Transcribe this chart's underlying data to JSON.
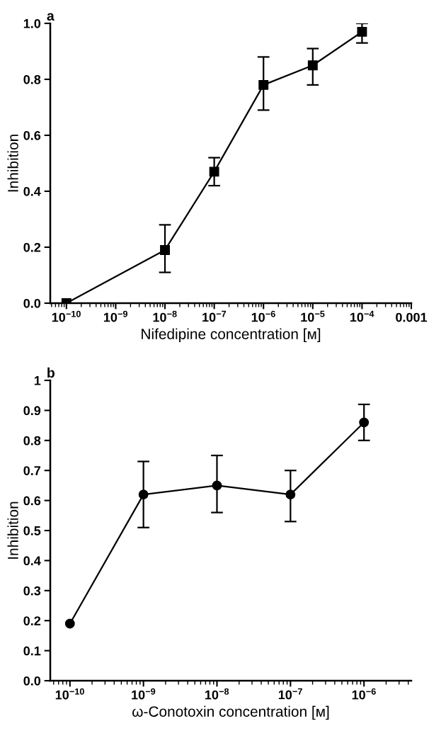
{
  "chart_data": [
    {
      "type": "line",
      "title": "a",
      "xlabel": "Nifedipine concentration [м]",
      "ylabel": "Inhibition",
      "log": "x",
      "marker": "square",
      "line_style": "solid",
      "grid": false,
      "x": [
        1e-10,
        1e-08,
        1e-07,
        1e-06,
        1e-05,
        0.0001
      ],
      "series": [
        {
          "color": "#000000",
          "values": [
            0.0,
            0.19,
            0.47,
            0.78,
            0.85,
            0.97
          ],
          "errors": [
            null,
            [
              0.11,
              0.28
            ],
            [
              0.42,
              0.52
            ],
            [
              0.69,
              0.88
            ],
            [
              0.78,
              0.91
            ],
            [
              0.93,
              1.0
            ]
          ]
        }
      ],
      "xlim": [
        4.7e-11,
        0.001
      ],
      "ylim": [
        0,
        1.0
      ],
      "xticks": [
        {
          "value": 1e-10,
          "label": "10$^{−10}$"
        },
        {
          "value": 1e-09,
          "label": "10$^{−9}$"
        },
        {
          "value": 1e-08,
          "label": "10$^{−8}$"
        },
        {
          "value": 1e-07,
          "label": "10$^{−7}$"
        },
        {
          "value": 1e-06,
          "label": "10$^{−6}$"
        },
        {
          "value": 1e-05,
          "label": "10$^{−5}$"
        },
        {
          "value": 0.0001,
          "label": "10$^{−4}$"
        },
        {
          "value": 0.001,
          "label": "0.001"
        }
      ],
      "yticks": [
        {
          "value": 0,
          "label": "0.0"
        },
        {
          "value": 0.2,
          "label": "0.2"
        },
        {
          "value": 0.4,
          "label": "0.4"
        },
        {
          "value": 0.6,
          "label": "0.6"
        },
        {
          "value": 0.8,
          "label": "0.8"
        },
        {
          "value": 1.0,
          "label": "1.0"
        }
      ]
    },
    {
      "type": "line",
      "title": "b",
      "xlabel": "ω-Conotoxin concentration [м]",
      "ylabel": "Inhibition",
      "log": "x",
      "marker": "circle",
      "line_style": "solid",
      "grid": false,
      "x": [
        1e-10,
        1e-09,
        1e-08,
        1e-07,
        1e-06
      ],
      "series": [
        {
          "color": "#000000",
          "values": [
            0.19,
            0.62,
            0.65,
            0.62,
            0.86
          ],
          "errors": [
            null,
            [
              0.51,
              0.73
            ],
            [
              0.56,
              0.75
            ],
            [
              0.53,
              0.7
            ],
            [
              0.8,
              0.92
            ]
          ]
        }
      ],
      "xlim": [
        5.4e-11,
        4.4e-06
      ],
      "ylim": [
        0,
        1
      ],
      "xticks": [
        {
          "value": 1e-10,
          "label": "10$^{−10}$"
        },
        {
          "value": 1e-09,
          "label": "10$^{−9}$"
        },
        {
          "value": 1e-08,
          "label": "10$^{−8}$"
        },
        {
          "value": 1e-07,
          "label": "10$^{−7}$"
        },
        {
          "value": 1e-06,
          "label": "10$^{−6}$"
        }
      ],
      "yticks": [
        {
          "value": 0,
          "label": "0.0"
        },
        {
          "value": 0.1,
          "label": "0.1"
        },
        {
          "value": 0.2,
          "label": "0.2"
        },
        {
          "value": 0.3,
          "label": "0.3"
        },
        {
          "value": 0.4,
          "label": "0.4"
        },
        {
          "value": 0.5,
          "label": "0.5"
        },
        {
          "value": 0.6,
          "label": "0.6"
        },
        {
          "value": 0.7,
          "label": "0.7"
        },
        {
          "value": 0.8,
          "label": "0.8"
        },
        {
          "value": 0.9,
          "label": "0.9"
        },
        {
          "value": 1,
          "label": "1"
        }
      ]
    }
  ]
}
